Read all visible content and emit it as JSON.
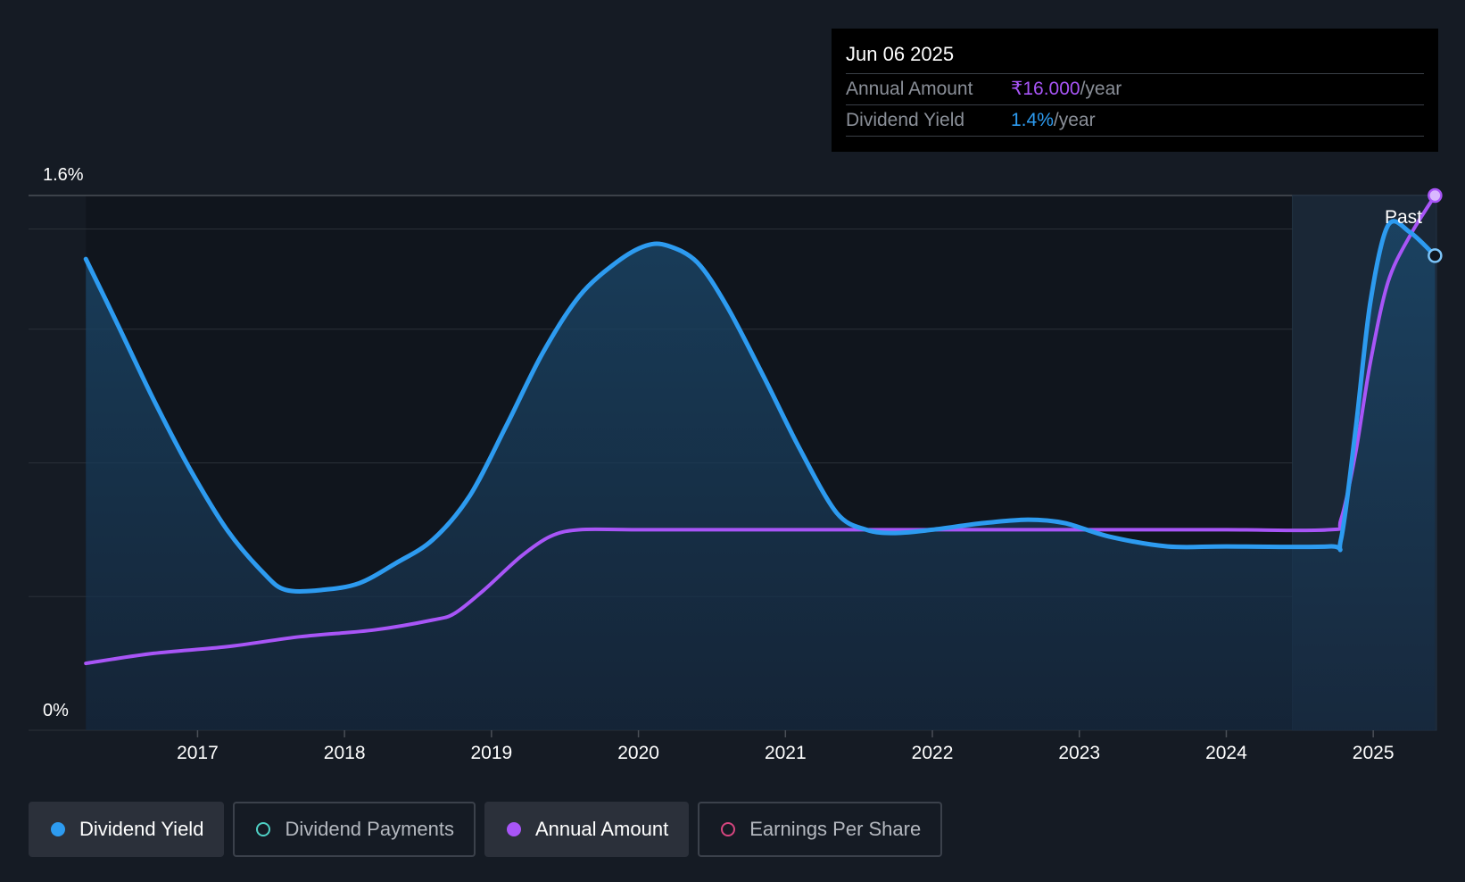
{
  "tooltip": {
    "date": "Jun 06 2025",
    "rows": [
      {
        "label": "Annual Amount",
        "value": "₹16.000",
        "unit": "/year",
        "color": "#a855f7"
      },
      {
        "label": "Dividend Yield",
        "value": "1.4%",
        "unit": "/year",
        "color": "#2d9bf0"
      }
    ]
  },
  "past_label": "Past",
  "legend": [
    {
      "label": "Dividend Yield",
      "color": "#2d9bf0",
      "filled": true,
      "active": true
    },
    {
      "label": "Dividend Payments",
      "color": "#4fd1c5",
      "filled": false,
      "active": false
    },
    {
      "label": "Annual Amount",
      "color": "#a855f7",
      "filled": true,
      "active": true
    },
    {
      "label": "Earnings Per Share",
      "color": "#d6457f",
      "filled": false,
      "active": false
    }
  ],
  "chart_data": {
    "type": "line",
    "y_tick_labels": [
      "0%",
      "1.6%"
    ],
    "ylim": [
      0,
      1.6
    ],
    "xlim": [
      2015.85,
      2025.43
    ],
    "x_ticks": [
      2017,
      2018,
      2019,
      2020,
      2021,
      2022,
      2023,
      2024,
      2025
    ],
    "x_tick_labels": [
      "2017",
      "2018",
      "2019",
      "2020",
      "2021",
      "2022",
      "2023",
      "2024",
      "2025"
    ],
    "past_region_start": 2024.45,
    "colors": {
      "yield": "#2d9bf0",
      "amount": "#a855f7"
    },
    "series": [
      {
        "name": "Dividend Yield",
        "key": "yield",
        "area": true,
        "points": [
          [
            2016.24,
            1.41
          ],
          [
            2016.45,
            1.22
          ],
          [
            2016.7,
            0.99
          ],
          [
            2016.95,
            0.78
          ],
          [
            2017.2,
            0.6
          ],
          [
            2017.45,
            0.47
          ],
          [
            2017.6,
            0.42
          ],
          [
            2017.85,
            0.42
          ],
          [
            2018.1,
            0.44
          ],
          [
            2018.35,
            0.5
          ],
          [
            2018.6,
            0.57
          ],
          [
            2018.85,
            0.7
          ],
          [
            2019.1,
            0.91
          ],
          [
            2019.35,
            1.13
          ],
          [
            2019.6,
            1.3
          ],
          [
            2019.85,
            1.4
          ],
          [
            2020.05,
            1.45
          ],
          [
            2020.2,
            1.45
          ],
          [
            2020.4,
            1.4
          ],
          [
            2020.6,
            1.27
          ],
          [
            2020.85,
            1.06
          ],
          [
            2021.1,
            0.84
          ],
          [
            2021.35,
            0.65
          ],
          [
            2021.55,
            0.6
          ],
          [
            2021.75,
            0.59
          ],
          [
            2022.0,
            0.6
          ],
          [
            2022.35,
            0.62
          ],
          [
            2022.65,
            0.63
          ],
          [
            2022.9,
            0.62
          ],
          [
            2023.2,
            0.58
          ],
          [
            2023.6,
            0.55
          ],
          [
            2024.0,
            0.55
          ],
          [
            2024.7,
            0.55
          ],
          [
            2024.78,
            0.57
          ],
          [
            2024.88,
            0.9
          ],
          [
            2024.98,
            1.28
          ],
          [
            2025.1,
            1.51
          ],
          [
            2025.25,
            1.49
          ],
          [
            2025.42,
            1.42
          ]
        ]
      },
      {
        "name": "Annual Amount",
        "key": "amount",
        "area": false,
        "points": [
          [
            2016.24,
            0.2
          ],
          [
            2016.7,
            0.23
          ],
          [
            2017.2,
            0.25
          ],
          [
            2017.7,
            0.28
          ],
          [
            2018.2,
            0.3
          ],
          [
            2018.6,
            0.33
          ],
          [
            2018.75,
            0.35
          ],
          [
            2018.95,
            0.42
          ],
          [
            2019.2,
            0.52
          ],
          [
            2019.4,
            0.58
          ],
          [
            2019.6,
            0.6
          ],
          [
            2020.0,
            0.6
          ],
          [
            2021.0,
            0.6
          ],
          [
            2022.0,
            0.6
          ],
          [
            2023.0,
            0.6
          ],
          [
            2024.0,
            0.6
          ],
          [
            2024.7,
            0.6
          ],
          [
            2024.78,
            0.63
          ],
          [
            2024.88,
            0.83
          ],
          [
            2024.98,
            1.1
          ],
          [
            2025.1,
            1.34
          ],
          [
            2025.25,
            1.48
          ],
          [
            2025.42,
            1.6
          ]
        ]
      }
    ]
  }
}
